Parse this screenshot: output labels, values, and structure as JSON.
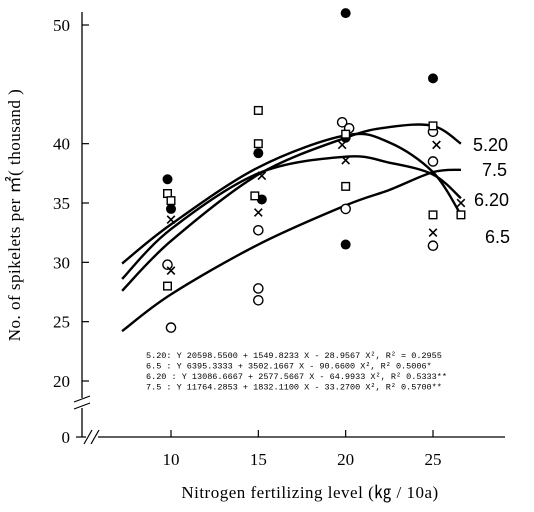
{
  "chart_data": {
    "type": "scatter",
    "xlabel": "Nitrogen fertilizing level (㎏ / 10a)",
    "ylabel": "No. of spikelets per ㎡( thousand )",
    "x_ticks": [
      "10",
      "15",
      "20",
      "25"
    ],
    "y_ticks": [
      "20",
      "25",
      "30",
      "35",
      "40",
      "50"
    ],
    "y_zero_tick": "0",
    "xlim": [
      6.5,
      28
    ],
    "ylim": [
      18,
      50
    ],
    "series": [
      {
        "name": "5.20",
        "marker": "open-circle",
        "points": [
          [
            9.8,
            29.8
          ],
          [
            10.0,
            24.5
          ],
          [
            15.0,
            32.7
          ],
          [
            15.0,
            27.8
          ],
          [
            15.0,
            26.8
          ],
          [
            19.8,
            41.8
          ],
          [
            20.2,
            41.3
          ],
          [
            20.0,
            34.5
          ],
          [
            25.0,
            41.0
          ],
          [
            25.0,
            38.5
          ],
          [
            25.0,
            31.4
          ]
        ],
        "fit_curve": [
          [
            7.2,
            24.2
          ],
          [
            10,
            27.3
          ],
          [
            15,
            31.5
          ],
          [
            20,
            34.8
          ],
          [
            22.5,
            36.1
          ],
          [
            25,
            37.6
          ],
          [
            26.6,
            37.8
          ]
        ],
        "curve_label": "6.5"
      },
      {
        "name": "6.5",
        "marker": "filled-circle",
        "points": [
          [
            9.8,
            37.0
          ],
          [
            10.0,
            34.5
          ],
          [
            15.0,
            39.2
          ],
          [
            15.2,
            35.3
          ],
          [
            20.0,
            31.5
          ],
          [
            20.0,
            51.0
          ],
          [
            20.0,
            40.5
          ],
          [
            25.0,
            45.5
          ]
        ],
        "fit_curve": [
          [
            7.2,
            29.9
          ],
          [
            10,
            33.2
          ],
          [
            15,
            38.0
          ],
          [
            20,
            40.7
          ],
          [
            22.5,
            40.1
          ],
          [
            25,
            37.6
          ],
          [
            26.6,
            34.0
          ]
        ],
        "curve_label": "6.20"
      },
      {
        "name": "6.20",
        "marker": "open-square",
        "points": [
          [
            9.8,
            35.8
          ],
          [
            10.0,
            35.2
          ],
          [
            9.8,
            28.0
          ],
          [
            15.0,
            42.8
          ],
          [
            15.0,
            40.0
          ],
          [
            14.8,
            35.6
          ],
          [
            20.0,
            36.4
          ],
          [
            20.0,
            40.8
          ],
          [
            25.0,
            41.5
          ],
          [
            25.0,
            34.0
          ],
          [
            26.6,
            34.0
          ]
        ],
        "fit_curve": [
          [
            7.2,
            28.6
          ],
          [
            10,
            32.8
          ],
          [
            15,
            37.5
          ],
          [
            20,
            38.9
          ],
          [
            22.5,
            38.4
          ],
          [
            25,
            37.4
          ],
          [
            26.6,
            35.4
          ]
        ],
        "curve_label": "7.5"
      },
      {
        "name": "7.5",
        "marker": "x-cross",
        "points": [
          [
            10.0,
            29.3
          ],
          [
            10.0,
            33.6
          ],
          [
            15.0,
            34.2
          ],
          [
            15.2,
            37.3
          ],
          [
            20.0,
            38.6
          ],
          [
            19.8,
            39.9
          ],
          [
            25.2,
            39.9
          ],
          [
            25.0,
            32.5
          ],
          [
            26.6,
            35.0
          ]
        ],
        "fit_curve": [
          [
            7.2,
            27.6
          ],
          [
            10,
            31.8
          ],
          [
            15,
            37.4
          ],
          [
            20,
            40.5
          ],
          [
            22.5,
            41.4
          ],
          [
            25,
            41.5
          ],
          [
            26.6,
            40.0
          ]
        ],
        "curve_label": "5.20"
      }
    ],
    "equations": [
      "5.20: Y  20598.5500 + 1549.8233 X - 28.9567 X², R² = 0.2955",
      "6.5  : Y   6395.3333 + 3502.1667 X - 90.6600 X², R²   0.5006*",
      "6.20 : Y  13086.6667 + 2577.5667 X - 64.9933 X², R²   0.5333**",
      "7.5  : Y  11764.2853 + 1832.1100 X - 33.2700 X², R²   0.5700**"
    ],
    "curve_labels": [
      "5.20",
      "7.5",
      "6.20",
      "6.5"
    ],
    "axis_break": true,
    "grid": false,
    "legend": "none"
  }
}
